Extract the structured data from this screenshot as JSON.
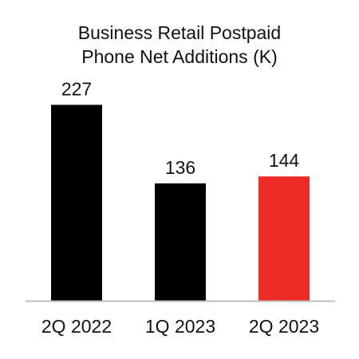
{
  "chart_data": {
    "type": "bar",
    "title_lines": [
      "Business Retail Postpaid",
      "Phone Net Additions (K)"
    ],
    "categories": [
      "2Q 2022",
      "1Q 2023",
      "2Q 2023"
    ],
    "values": [
      227,
      136,
      144
    ],
    "bar_colors": [
      "#000000",
      "#000000",
      "#ee2a24"
    ],
    "xlabel": "",
    "ylabel": "",
    "ylim": [
      0,
      240
    ],
    "grid": false,
    "legend": "none"
  },
  "colors": {
    "accent": "#ee2a24",
    "bar": "#000000",
    "axis": "#bdbdbd",
    "text": "#111111"
  }
}
